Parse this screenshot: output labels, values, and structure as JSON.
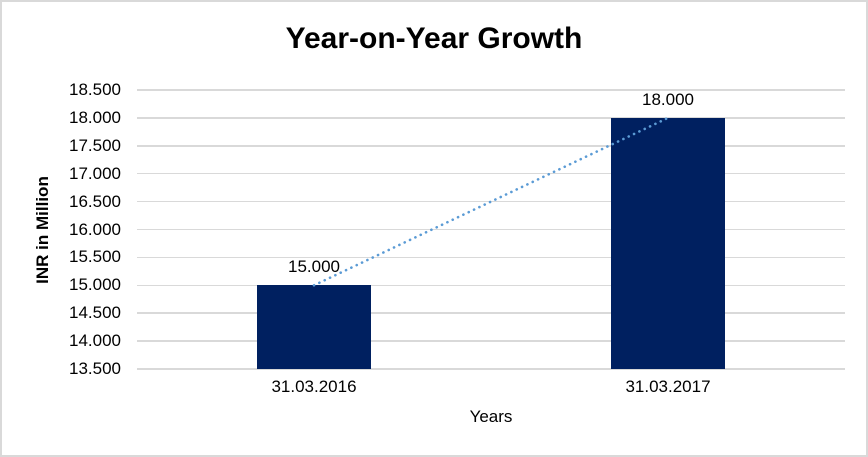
{
  "chart_data": {
    "type": "bar",
    "title": "Year-on-Year Growth",
    "xlabel": "Years",
    "ylabel": "INR in Million",
    "categories": [
      "31.03.2016",
      "31.03.2017"
    ],
    "values": [
      15000,
      18000
    ],
    "value_labels": [
      "15.000",
      "18.000"
    ],
    "ylim": [
      13500,
      18500
    ],
    "y_ticks": [
      {
        "value": 13500,
        "label": "13.500"
      },
      {
        "value": 14000,
        "label": "14.000"
      },
      {
        "value": 14500,
        "label": "14.500"
      },
      {
        "value": 15000,
        "label": "15.000"
      },
      {
        "value": 15500,
        "label": "15.500"
      },
      {
        "value": 16000,
        "label": "16.000"
      },
      {
        "value": 16500,
        "label": "16.500"
      },
      {
        "value": 17000,
        "label": "17.000"
      },
      {
        "value": 17500,
        "label": "17.500"
      },
      {
        "value": 18000,
        "label": "18.000"
      },
      {
        "value": 18500,
        "label": "18.500"
      }
    ],
    "grid": true,
    "legend": false,
    "trendline": {
      "style": "dotted",
      "from": {
        "category": "31.03.2016",
        "value": 15000
      },
      "to": {
        "category": "31.03.2017",
        "value": 18000
      }
    },
    "colors": {
      "bar": "#002060",
      "trendline": "#5b9bd5",
      "gridline": "#d9d9d9",
      "frame_border": "#d9d9d9",
      "text": "#000000",
      "background": "#ffffff"
    }
  }
}
